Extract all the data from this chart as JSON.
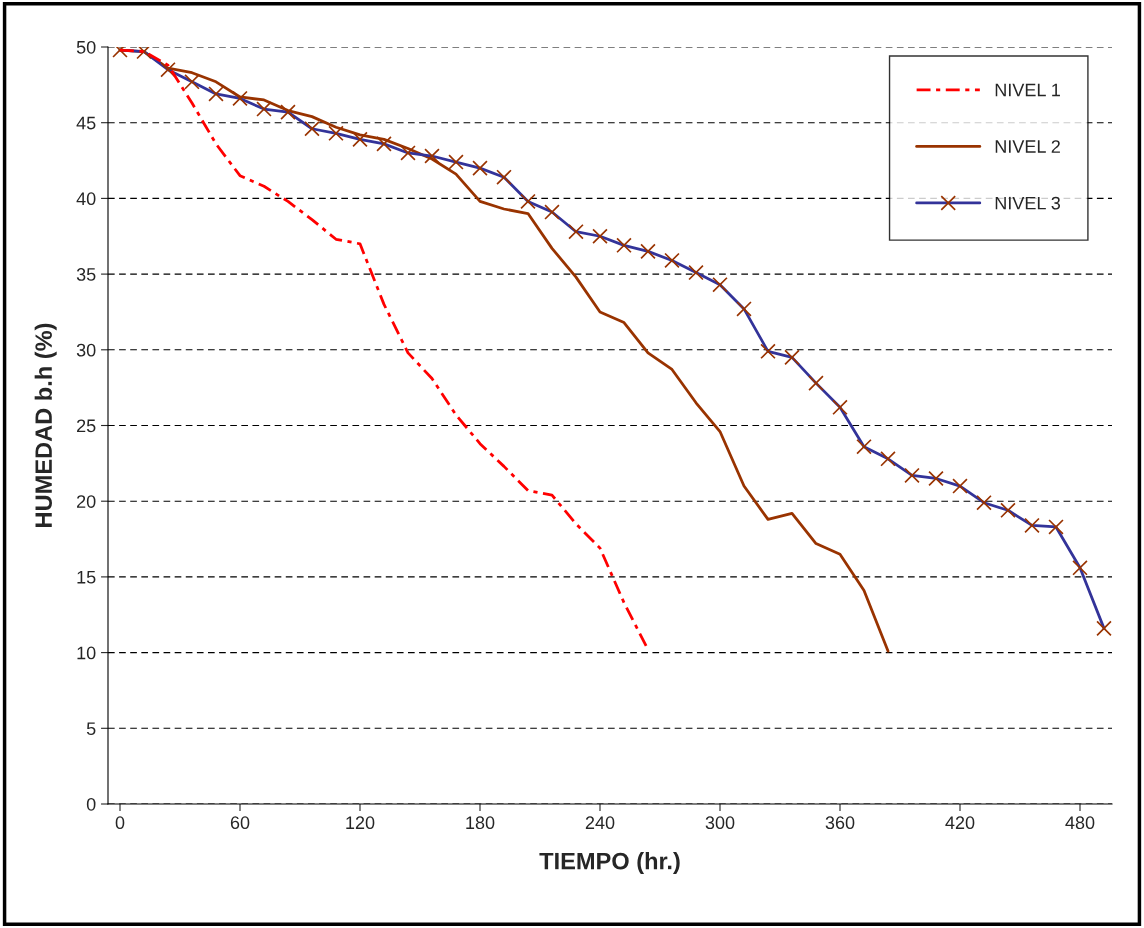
{
  "chart_data": {
    "type": "line",
    "xlabel": "TIEMPO (hr.)",
    "ylabel": "HUMEDAD b.h (%)",
    "xlim": [
      -6,
      496
    ],
    "xticks": [
      0,
      60,
      120,
      180,
      240,
      300,
      360,
      420,
      480
    ],
    "ylim": [
      0,
      50
    ],
    "yticks": [
      0,
      5,
      10,
      15,
      20,
      25,
      30,
      35,
      40,
      45,
      50
    ],
    "grid": "y",
    "legend": "top right",
    "series": [
      {
        "name": "NIVEL 1",
        "color": "#ff0000",
        "line_style": "dashdot",
        "marker": "none",
        "x": [
          0,
          12,
          24,
          36,
          48,
          60,
          72,
          84,
          96,
          108,
          120,
          132,
          144,
          156,
          168,
          180,
          192,
          204,
          216,
          228,
          240,
          252,
          264
        ],
        "values": [
          49.8,
          49.7,
          48.8,
          46.3,
          43.6,
          41.5,
          40.8,
          39.8,
          38.6,
          37.3,
          37.0,
          33.0,
          29.8,
          28.1,
          25.7,
          23.8,
          22.3,
          20.7,
          20.4,
          18.5,
          16.9,
          13.3,
          10.2
        ]
      },
      {
        "name": "NIVEL 2",
        "color": "#993300",
        "line_style": "solid",
        "marker": "none",
        "x": [
          0,
          12,
          24,
          36,
          48,
          60,
          72,
          84,
          96,
          108,
          120,
          132,
          144,
          156,
          168,
          180,
          192,
          204,
          216,
          228,
          240,
          252,
          264,
          276,
          288,
          300,
          312,
          324,
          336,
          348,
          360,
          372,
          384
        ],
        "values": [
          49.8,
          49.7,
          48.6,
          48.3,
          47.7,
          46.7,
          46.5,
          45.8,
          45.4,
          44.7,
          44.2,
          43.9,
          43.3,
          42.6,
          41.6,
          39.8,
          39.3,
          39.0,
          36.7,
          34.8,
          32.5,
          31.8,
          29.8,
          28.7,
          26.5,
          24.6,
          21.0,
          18.8,
          19.2,
          17.2,
          16.5,
          14.1,
          10.1
        ]
      },
      {
        "name": "NIVEL 3",
        "color": "#333399",
        "line_style": "solid",
        "marker": "cross",
        "x": [
          0,
          12,
          24,
          36,
          48,
          60,
          72,
          84,
          96,
          108,
          120,
          132,
          144,
          156,
          168,
          180,
          192,
          204,
          216,
          228,
          240,
          252,
          264,
          276,
          288,
          300,
          312,
          324,
          336,
          348,
          360,
          372,
          384,
          396,
          408,
          420,
          432,
          444,
          456,
          468,
          480,
          492
        ],
        "values": [
          49.8,
          49.7,
          48.5,
          47.7,
          46.9,
          46.6,
          45.9,
          45.7,
          44.6,
          44.3,
          43.9,
          43.6,
          43.0,
          42.8,
          42.4,
          42.0,
          41.4,
          39.8,
          39.1,
          37.8,
          37.5,
          36.9,
          36.5,
          35.9,
          35.1,
          34.3,
          32.7,
          29.9,
          29.5,
          27.8,
          26.2,
          23.6,
          22.8,
          21.7,
          21.5,
          21.0,
          19.9,
          19.4,
          18.4,
          18.3,
          15.6,
          11.6
        ]
      }
    ]
  }
}
